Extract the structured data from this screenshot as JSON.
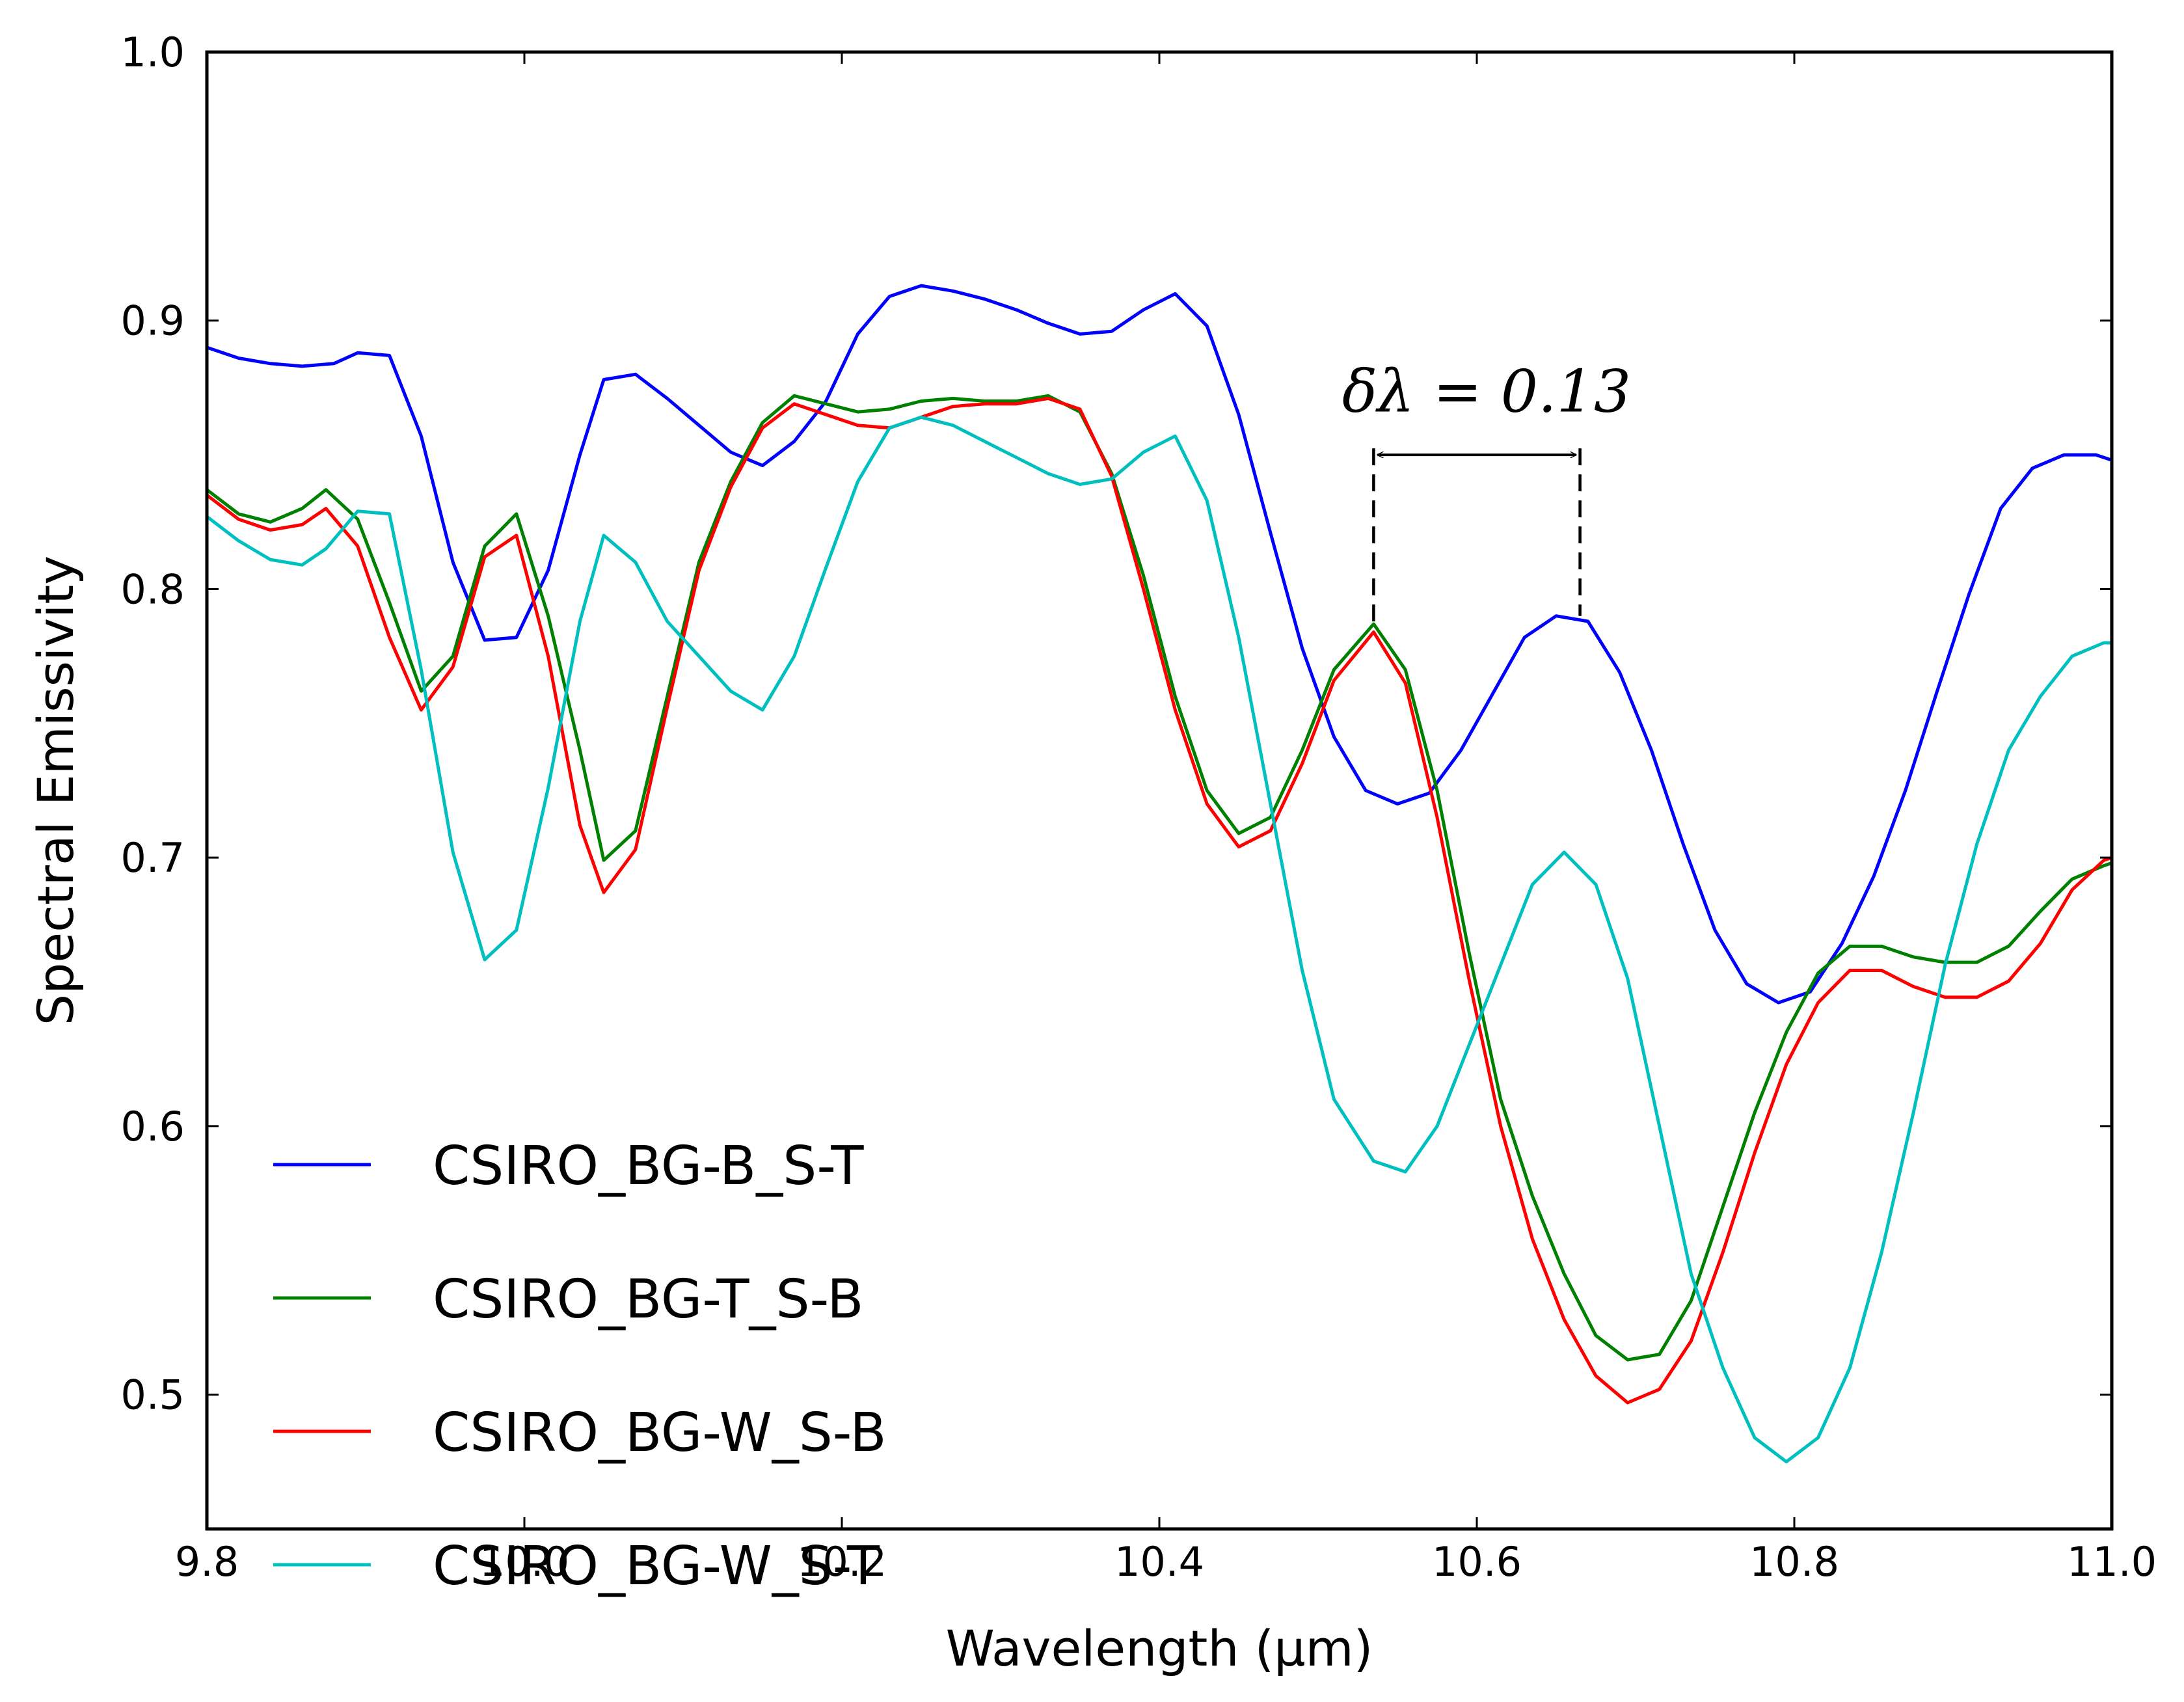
{
  "chart_data": {
    "type": "line",
    "title": "",
    "xlabel": "Wavelength (μm)",
    "ylabel": "Spectral Emissivity",
    "xlim": [
      9.8,
      11.0
    ],
    "ylim": [
      0.45,
      1.0
    ],
    "xticks": [
      9.8,
      10.0,
      10.2,
      10.4,
      10.6,
      10.8,
      11.0
    ],
    "xtick_labels": [
      "9.8",
      "10.0",
      "10.2",
      "10.4",
      "10.6",
      "10.8",
      "11.0"
    ],
    "yticks": [
      0.5,
      0.6,
      0.7,
      0.8,
      0.9,
      1.0
    ],
    "ytick_labels": [
      "0.5",
      "0.6",
      "0.7",
      "0.8",
      "0.9",
      "1.0"
    ],
    "grid": false,
    "legend_position": "bottom-left",
    "annotation": {
      "text": "δλ = 0.13",
      "x_start": 10.535,
      "x_end": 10.665,
      "y_arrow": 0.85,
      "y_start_base": 0.785,
      "y_end_base": 0.79
    },
    "series": [
      {
        "name": "CSIRO_BG-B_S-T",
        "color": "#0000ff",
        "x": [
          9.8,
          9.82,
          9.84,
          9.86,
          9.88,
          9.895,
          9.915,
          9.935,
          9.955,
          9.975,
          9.995,
          10.015,
          10.035,
          10.05,
          10.07,
          10.09,
          10.11,
          10.13,
          10.15,
          10.17,
          10.19,
          10.21,
          10.23,
          10.25,
          10.27,
          10.29,
          10.31,
          10.33,
          10.35,
          10.37,
          10.39,
          10.41,
          10.43,
          10.45,
          10.47,
          10.49,
          10.51,
          10.53,
          10.55,
          10.57,
          10.59,
          10.61,
          10.63,
          10.65,
          10.67,
          10.69,
          10.71,
          10.73,
          10.75,
          10.77,
          10.79,
          10.81,
          10.83,
          10.85,
          10.87,
          10.89,
          10.91,
          10.93,
          10.95,
          10.97,
          10.99,
          11.0
        ],
        "values": [
          0.89,
          0.886,
          0.884,
          0.883,
          0.884,
          0.888,
          0.887,
          0.857,
          0.81,
          0.781,
          0.782,
          0.807,
          0.85,
          0.878,
          0.88,
          0.871,
          0.861,
          0.851,
          0.846,
          0.855,
          0.87,
          0.895,
          0.909,
          0.913,
          0.911,
          0.908,
          0.904,
          0.899,
          0.895,
          0.896,
          0.904,
          0.91,
          0.898,
          0.865,
          0.821,
          0.778,
          0.745,
          0.725,
          0.72,
          0.724,
          0.74,
          0.761,
          0.782,
          0.79,
          0.788,
          0.769,
          0.74,
          0.705,
          0.673,
          0.653,
          0.646,
          0.65,
          0.668,
          0.693,
          0.725,
          0.762,
          0.798,
          0.83,
          0.845,
          0.85,
          0.85,
          0.848
        ]
      },
      {
        "name": "CSIRO_BG-T_S-B",
        "color": "#008000",
        "x": [
          9.8,
          9.82,
          9.84,
          9.86,
          9.875,
          9.895,
          9.915,
          9.935,
          9.955,
          9.975,
          9.995,
          10.015,
          10.035,
          10.05,
          10.07,
          10.09,
          10.11,
          10.13,
          10.15,
          10.17,
          10.19,
          10.21,
          10.23,
          10.25,
          10.27,
          10.29,
          10.31,
          10.33,
          10.35,
          10.37,
          10.39,
          10.41,
          10.43,
          10.45,
          10.47,
          10.49,
          10.51,
          10.535,
          10.555,
          10.575,
          10.595,
          10.615,
          10.635,
          10.655,
          10.675,
          10.695,
          10.715,
          10.735,
          10.755,
          10.775,
          10.795,
          10.815,
          10.835,
          10.855,
          10.875,
          10.895,
          10.915,
          10.935,
          10.955,
          10.975,
          10.995,
          11.0
        ],
        "values": [
          0.837,
          0.828,
          0.825,
          0.83,
          0.837,
          0.826,
          0.795,
          0.762,
          0.775,
          0.816,
          0.828,
          0.79,
          0.74,
          0.699,
          0.71,
          0.76,
          0.81,
          0.84,
          0.862,
          0.872,
          0.869,
          0.866,
          0.867,
          0.87,
          0.871,
          0.87,
          0.87,
          0.872,
          0.866,
          0.843,
          0.805,
          0.76,
          0.725,
          0.709,
          0.715,
          0.74,
          0.77,
          0.787,
          0.77,
          0.725,
          0.665,
          0.61,
          0.574,
          0.545,
          0.522,
          0.513,
          0.515,
          0.535,
          0.57,
          0.605,
          0.635,
          0.657,
          0.667,
          0.667,
          0.663,
          0.661,
          0.661,
          0.667,
          0.68,
          0.692,
          0.697,
          0.698
        ]
      },
      {
        "name": "CSIRO_BG-W_S-B",
        "color": "#ff0000",
        "x": [
          9.8,
          9.82,
          9.84,
          9.86,
          9.875,
          9.895,
          9.915,
          9.935,
          9.955,
          9.975,
          9.995,
          10.015,
          10.035,
          10.05,
          10.07,
          10.09,
          10.11,
          10.13,
          10.15,
          10.17,
          10.19,
          10.21,
          10.23,
          10.25,
          10.27,
          10.29,
          10.31,
          10.33,
          10.35,
          10.37,
          10.39,
          10.41,
          10.43,
          10.45,
          10.47,
          10.49,
          10.51,
          10.535,
          10.555,
          10.575,
          10.595,
          10.615,
          10.635,
          10.655,
          10.675,
          10.695,
          10.715,
          10.735,
          10.755,
          10.775,
          10.795,
          10.815,
          10.835,
          10.855,
          10.875,
          10.895,
          10.915,
          10.935,
          10.955,
          10.975,
          10.995,
          11.0
        ],
        "values": [
          0.835,
          0.826,
          0.822,
          0.824,
          0.83,
          0.816,
          0.782,
          0.755,
          0.771,
          0.812,
          0.82,
          0.775,
          0.712,
          0.687,
          0.703,
          0.756,
          0.807,
          0.838,
          0.86,
          0.869,
          0.865,
          0.861,
          0.86,
          0.864,
          0.868,
          0.869,
          0.869,
          0.871,
          0.867,
          0.842,
          0.8,
          0.755,
          0.72,
          0.704,
          0.71,
          0.735,
          0.766,
          0.784,
          0.765,
          0.715,
          0.655,
          0.6,
          0.558,
          0.528,
          0.507,
          0.497,
          0.502,
          0.52,
          0.553,
          0.59,
          0.623,
          0.646,
          0.658,
          0.658,
          0.652,
          0.648,
          0.648,
          0.654,
          0.668,
          0.688,
          0.699,
          0.7
        ]
      },
      {
        "name": "CSIRO_BG-W_S-T",
        "color": "#00bfbf",
        "x": [
          9.8,
          9.82,
          9.84,
          9.86,
          9.875,
          9.895,
          9.915,
          9.935,
          9.955,
          9.975,
          9.995,
          10.015,
          10.035,
          10.05,
          10.07,
          10.09,
          10.11,
          10.13,
          10.15,
          10.17,
          10.19,
          10.21,
          10.23,
          10.25,
          10.27,
          10.29,
          10.31,
          10.33,
          10.35,
          10.37,
          10.39,
          10.41,
          10.43,
          10.45,
          10.47,
          10.49,
          10.51,
          10.535,
          10.555,
          10.575,
          10.595,
          10.615,
          10.635,
          10.655,
          10.675,
          10.695,
          10.715,
          10.735,
          10.755,
          10.775,
          10.795,
          10.815,
          10.835,
          10.855,
          10.875,
          10.895,
          10.915,
          10.935,
          10.955,
          10.975,
          10.995,
          11.0
        ],
        "values": [
          0.827,
          0.818,
          0.811,
          0.809,
          0.815,
          0.829,
          0.828,
          0.77,
          0.702,
          0.662,
          0.673,
          0.726,
          0.788,
          0.82,
          0.81,
          0.788,
          0.775,
          0.762,
          0.755,
          0.775,
          0.808,
          0.84,
          0.86,
          0.864,
          0.861,
          0.855,
          0.849,
          0.843,
          0.839,
          0.841,
          0.851,
          0.857,
          0.833,
          0.782,
          0.72,
          0.658,
          0.61,
          0.587,
          0.583,
          0.6,
          0.63,
          0.66,
          0.69,
          0.702,
          0.69,
          0.655,
          0.6,
          0.545,
          0.51,
          0.484,
          0.475,
          0.484,
          0.51,
          0.553,
          0.605,
          0.66,
          0.705,
          0.74,
          0.76,
          0.775,
          0.78,
          0.78
        ]
      }
    ]
  }
}
